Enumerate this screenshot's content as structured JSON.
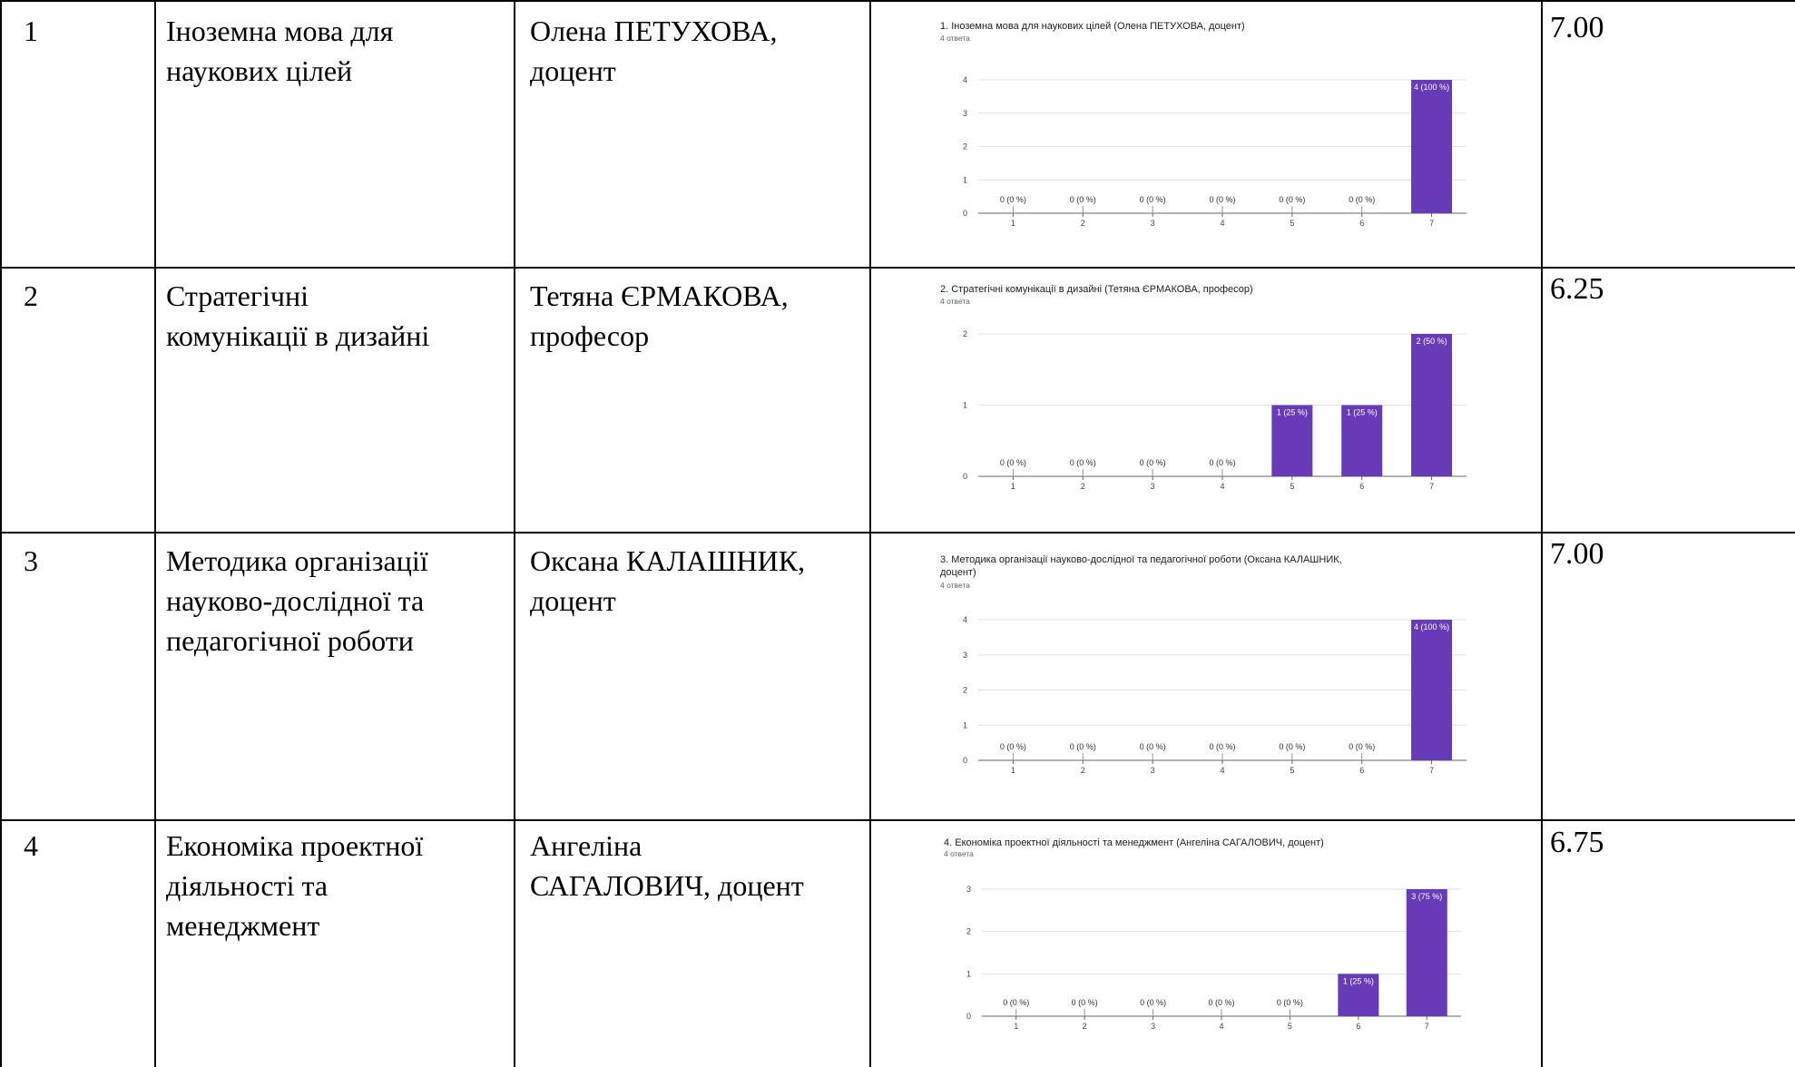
{
  "rows": [
    {
      "num": "1",
      "subject": "Іноземна мова для\nнаукових цілей",
      "teacher": "Олена ПЕТУХОВА,\nдоцент",
      "score": "7.00",
      "chart_title": [
        "1. Іноземна мова для наукових цілей (Олена ПЕТУХОВА, доцент)"
      ],
      "chart_sub": "4 ответа"
    },
    {
      "num": "2",
      "subject": "Стратегічні\nкомунікації в дизайні",
      "teacher": "Тетяна ЄРМАКОВА,\nпрофесор",
      "score": "6.25",
      "chart_title": [
        "2. Стратегічні комунікації в дизайні (Тетяна ЄРМАКОВА, професор)"
      ],
      "chart_sub": "4 ответа"
    },
    {
      "num": "3",
      "subject": "Методика організації\nнауково-дослідної та\nпедагогічної роботи",
      "teacher": "Оксана КАЛАШНИК,\nдоцент",
      "score": "7.00",
      "chart_title": [
        "3. Методика організації науково-дослідної та педагогічної роботи (Оксана КАЛАШНИК,",
        "доцент)"
      ],
      "chart_sub": "4 ответа"
    },
    {
      "num": "4",
      "subject": "Економіка проектної\nдіяльності та\nменеджмент",
      "teacher": "Ангеліна\nСАГАЛОВИЧ, доцент",
      "score": "6.75",
      "chart_title": [
        "4. Економіка проектної діяльності та менеджмент (Ангеліна САГАЛОВИЧ, доцент)"
      ],
      "chart_sub": "4 ответа"
    }
  ],
  "chart_data": [
    {
      "type": "bar",
      "title": "1. Іноземна мова для наукових цілей (Олена ПЕТУХОВА, доцент)",
      "categories": [
        "1",
        "2",
        "3",
        "4",
        "5",
        "6",
        "7"
      ],
      "values": [
        0,
        0,
        0,
        0,
        0,
        0,
        4
      ],
      "labels": [
        "0 (0 %)",
        "0 (0 %)",
        "0 (0 %)",
        "0 (0 %)",
        "0 (0 %)",
        "0 (0 %)",
        "4 (100 %)"
      ],
      "yticks": [
        "0",
        "1",
        "2",
        "3",
        "4"
      ],
      "ylim": [
        0,
        4
      ],
      "grid": true,
      "color": "#673ab7"
    },
    {
      "type": "bar",
      "title": "2. Стратегічні комунікації в дизайні (Тетяна ЄРМАКОВА, професор)",
      "categories": [
        "1",
        "2",
        "3",
        "4",
        "5",
        "6",
        "7"
      ],
      "values": [
        0,
        0,
        0,
        0,
        1,
        1,
        2
      ],
      "labels": [
        "0 (0 %)",
        "0 (0 %)",
        "0 (0 %)",
        "0 (0 %)",
        "1 (25 %)",
        "1 (25 %)",
        "2 (50 %)"
      ],
      "yticks": [
        "0",
        "1",
        "2"
      ],
      "ylim": [
        0,
        2
      ],
      "grid": true,
      "color": "#673ab7"
    },
    {
      "type": "bar",
      "title": "3. Методика організації науково-дослідної та педагогічної роботи (Оксана КАЛАШНИК, доцент)",
      "categories": [
        "1",
        "2",
        "3",
        "4",
        "5",
        "6",
        "7"
      ],
      "values": [
        0,
        0,
        0,
        0,
        0,
        0,
        4
      ],
      "labels": [
        "0 (0 %)",
        "0 (0 %)",
        "0 (0 %)",
        "0 (0 %)",
        "0 (0 %)",
        "0 (0 %)",
        "4 (100 %)"
      ],
      "yticks": [
        "0",
        "1",
        "2",
        "3",
        "4"
      ],
      "ylim": [
        0,
        4
      ],
      "grid": true,
      "color": "#673ab7"
    },
    {
      "type": "bar",
      "title": "4. Економіка проектної діяльності та менеджмент (Ангеліна САГАЛОВИЧ, доцент)",
      "categories": [
        "1",
        "2",
        "3",
        "4",
        "5",
        "6",
        "7"
      ],
      "values": [
        0,
        0,
        0,
        0,
        0,
        1,
        3
      ],
      "labels": [
        "0 (0 %)",
        "0 (0 %)",
        "0 (0 %)",
        "0 (0 %)",
        "0 (0 %)",
        "1 (25 %)",
        "3 (75 %)"
      ],
      "yticks": [
        "0",
        "1",
        "2",
        "3"
      ],
      "ylim": [
        0,
        3
      ],
      "grid": true,
      "color": "#673ab7"
    }
  ]
}
